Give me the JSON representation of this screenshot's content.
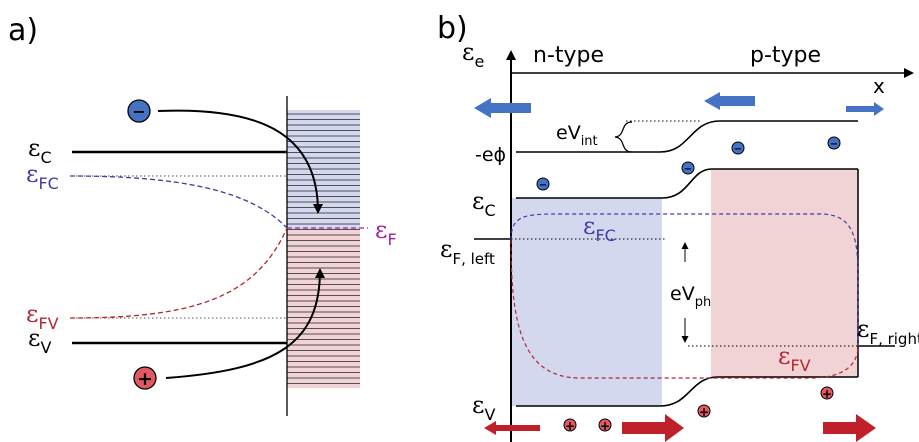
{
  "panel_a": {
    "label": "a)",
    "levels": {
      "eps_c": {
        "main": "ε",
        "sub": "C"
      },
      "eps_fc": {
        "main": "ε",
        "sub": "FC"
      },
      "eps_fv": {
        "main": "ε",
        "sub": "FV"
      },
      "eps_v": {
        "main": "ε",
        "sub": "V"
      },
      "eps_f": {
        "main": "ε",
        "sub": "F"
      }
    },
    "electron_symbol": "−",
    "hole_symbol": "+"
  },
  "panel_b": {
    "label": "b)",
    "axis_y": {
      "main": "ε",
      "sub": "e"
    },
    "axis_x": "x",
    "region_n": "n-type",
    "region_p": "p-type",
    "e_v_int": {
      "main": "eV",
      "sub": "int"
    },
    "minus_e_phi": "-eϕ",
    "eps_c": {
      "main": "ε",
      "sub": "C"
    },
    "eps_fc": {
      "main": "ε",
      "sub": "FC"
    },
    "eps_f_left": {
      "main": "ε",
      "sub": "F, left"
    },
    "eps_f_right": {
      "main": "ε",
      "sub": "F, right"
    },
    "e_v_ph": {
      "main": "eV",
      "sub": "ph"
    },
    "eps_fv": {
      "main": "ε",
      "sub": "FV"
    },
    "eps_v": {
      "main": "ε",
      "sub": "V"
    },
    "electron_symbol": "−",
    "hole_symbol": "+"
  },
  "colors": {
    "blue": "#4472c4",
    "red": "#c0202a",
    "purple": "#a020a0",
    "blue_fill": "#d3d8ef",
    "red_fill": "#f2d3d5",
    "dashed_blue": "#3d3da8",
    "dashed_red": "#b5262f"
  }
}
